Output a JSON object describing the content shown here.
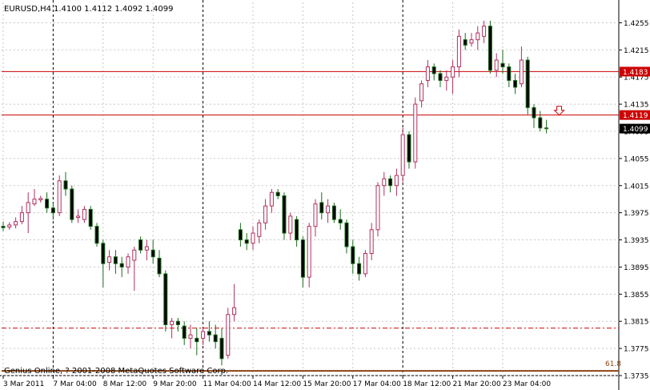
{
  "header": {
    "symbol_label": "EURUSD,H4",
    "ohlc_label": "1.4100 1.4112 1.4092 1.4099"
  },
  "footer": {
    "copyright": "Genius Online, ? 2001-2008 MetaQuotes Software Corp.",
    "fib_label": "61.8"
  },
  "chart_data": {
    "type": "candlestick",
    "symbol": "EURUSD",
    "timeframe": "H4",
    "ylim": [
      1.3735,
      1.4285
    ],
    "y_ticks": [
      "1.4255",
      "1.4215",
      "1.4175",
      "1.4135",
      "1.4095",
      "1.4055",
      "1.4015",
      "1.3975",
      "1.3935",
      "1.3895",
      "1.3855",
      "1.3815",
      "1.3775",
      "1.3735"
    ],
    "x_ticks": [
      "3 Mar 2011",
      "7 Mar 04:00",
      "8 Mar 12:00",
      "9 Mar 20:00",
      "11 Mar 04:00",
      "14 Mar 12:00",
      "15 Mar 20:00",
      "17 Mar 04:00",
      "18 Mar 12:00",
      "21 Mar 20:00",
      "23 Mar 04:00"
    ],
    "candles": [
      [
        1.3955,
        1.3962,
        1.3948,
        1.3953
      ],
      [
        1.3954,
        1.3961,
        1.395,
        1.3957
      ],
      [
        1.3957,
        1.3968,
        1.3952,
        1.3962
      ],
      [
        1.3962,
        1.3985,
        1.3958,
        1.3975
      ],
      [
        1.3975,
        1.4005,
        1.3945,
        1.399
      ],
      [
        1.3988,
        1.401,
        1.3985,
        1.3995
      ],
      [
        1.3994,
        1.4,
        1.399,
        1.3996
      ],
      [
        1.3995,
        1.4005,
        1.3975,
        1.3982
      ],
      [
        1.3982,
        1.399,
        1.3965,
        1.3975
      ],
      [
        1.3975,
        1.403,
        1.397,
        1.4022
      ],
      [
        1.4022,
        1.4035,
        1.4,
        1.401
      ],
      [
        1.401,
        1.4015,
        1.396,
        1.3965
      ],
      [
        1.3968,
        1.398,
        1.396,
        1.397
      ],
      [
        1.3965,
        1.3985,
        1.396,
        1.398
      ],
      [
        1.398,
        1.3985,
        1.395,
        1.3955
      ],
      [
        1.3955,
        1.396,
        1.3925,
        1.393
      ],
      [
        1.393,
        1.3935,
        1.3865,
        1.39
      ],
      [
        1.3902,
        1.392,
        1.389,
        1.391
      ],
      [
        1.391,
        1.392,
        1.3885,
        1.39
      ],
      [
        1.39,
        1.391,
        1.388,
        1.3895
      ],
      [
        1.3895,
        1.3915,
        1.3885,
        1.391
      ],
      [
        1.3905,
        1.3925,
        1.386,
        1.392
      ],
      [
        1.3935,
        1.394,
        1.3915,
        1.392
      ],
      [
        1.392,
        1.3935,
        1.3905,
        1.3925
      ],
      [
        1.392,
        1.3935,
        1.39,
        1.391
      ],
      [
        1.3908,
        1.392,
        1.388,
        1.3885
      ],
      [
        1.3885,
        1.389,
        1.38,
        1.381
      ],
      [
        1.381,
        1.382,
        1.379,
        1.3815
      ],
      [
        1.3815,
        1.382,
        1.38,
        1.381
      ],
      [
        1.3808,
        1.3815,
        1.378,
        1.379
      ],
      [
        1.379,
        1.381,
        1.3775,
        1.3795
      ],
      [
        1.379,
        1.3805,
        1.3765,
        1.3785
      ],
      [
        1.379,
        1.3805,
        1.378,
        1.38
      ],
      [
        1.38,
        1.3815,
        1.3785,
        1.3795
      ],
      [
        1.3795,
        1.381,
        1.3775,
        1.3785
      ],
      [
        1.379,
        1.3805,
        1.375,
        1.376
      ],
      [
        1.3765,
        1.3835,
        1.376,
        1.3825
      ],
      [
        1.3825,
        1.387,
        1.3815,
        1.3835
      ],
      [
        1.395,
        1.396,
        1.3925,
        1.3935
      ],
      [
        1.3935,
        1.3945,
        1.392,
        1.393
      ],
      [
        1.393,
        1.3955,
        1.392,
        1.3945
      ],
      [
        1.394,
        1.3965,
        1.393,
        1.396
      ],
      [
        1.396,
        1.3995,
        1.395,
        1.3985
      ],
      [
        1.3985,
        1.401,
        1.3975,
        1.4005
      ],
      [
        1.4005,
        1.401,
        1.3995,
        1.4
      ],
      [
        1.4,
        1.4005,
        1.3935,
        1.3945
      ],
      [
        1.3945,
        1.3975,
        1.3935,
        1.397
      ],
      [
        1.3965,
        1.397,
        1.3925,
        1.3935
      ],
      [
        1.3935,
        1.394,
        1.3865,
        1.388
      ],
      [
        1.388,
        1.396,
        1.3865,
        1.3955
      ],
      [
        1.3955,
        1.3995,
        1.394,
        1.3988
      ],
      [
        1.399,
        1.4005,
        1.3965,
        1.3975
      ],
      [
        1.3975,
        1.3995,
        1.396,
        1.3985
      ],
      [
        1.3985,
        1.399,
        1.396,
        1.3965
      ],
      [
        1.3965,
        1.398,
        1.395,
        1.396
      ],
      [
        1.396,
        1.3965,
        1.3915,
        1.3925
      ],
      [
        1.3925,
        1.3935,
        1.3885,
        1.39
      ],
      [
        1.39,
        1.391,
        1.3875,
        1.3885
      ],
      [
        1.3885,
        1.392,
        1.388,
        1.3915
      ],
      [
        1.3915,
        1.396,
        1.3905,
        1.395
      ],
      [
        1.395,
        1.402,
        1.394,
        1.4015
      ],
      [
        1.4015,
        1.4035,
        1.4,
        1.4025
      ],
      [
        1.4025,
        1.403,
        1.4005,
        1.4015
      ],
      [
        1.4015,
        1.404,
        1.4,
        1.403
      ],
      [
        1.403,
        1.41,
        1.402,
        1.409
      ],
      [
        1.409,
        1.4095,
        1.404,
        1.405
      ],
      [
        1.405,
        1.4145,
        1.404,
        1.4135
      ],
      [
        1.414,
        1.417,
        1.413,
        1.4165
      ],
      [
        1.417,
        1.42,
        1.416,
        1.419
      ],
      [
        1.419,
        1.4195,
        1.417,
        1.418
      ],
      [
        1.418,
        1.4185,
        1.416,
        1.417
      ],
      [
        1.417,
        1.4185,
        1.4155,
        1.4175
      ],
      [
        1.4175,
        1.42,
        1.415,
        1.419
      ],
      [
        1.419,
        1.4245,
        1.4175,
        1.4235
      ],
      [
        1.423,
        1.424,
        1.4215,
        1.4222
      ],
      [
        1.4225,
        1.424,
        1.422,
        1.423
      ],
      [
        1.423,
        1.425,
        1.4215,
        1.424
      ],
      [
        1.4235,
        1.4258,
        1.4225,
        1.425
      ],
      [
        1.425,
        1.4258,
        1.418,
        1.4185
      ],
      [
        1.4185,
        1.421,
        1.4175,
        1.42
      ],
      [
        1.4195,
        1.4215,
        1.418,
        1.419
      ],
      [
        1.419,
        1.4195,
        1.416,
        1.417
      ],
      [
        1.417,
        1.418,
        1.415,
        1.416
      ],
      [
        1.4165,
        1.422,
        1.416,
        1.42
      ],
      [
        1.42,
        1.4205,
        1.412,
        1.413
      ],
      [
        1.413,
        1.4135,
        1.41,
        1.4115
      ],
      [
        1.4115,
        1.4125,
        1.4095,
        1.41
      ],
      [
        1.41,
        1.4112,
        1.4092,
        1.4099
      ]
    ],
    "horizontal_lines": [
      {
        "price": 1.4183,
        "label": "1.4183",
        "color": "#cc0000",
        "style": "solid"
      },
      {
        "price": 1.4119,
        "label": "1.4119",
        "color": "#cc0000",
        "style": "solid"
      },
      {
        "price": 1.3805,
        "label": "",
        "color": "#cc0000",
        "style": "dashdot"
      },
      {
        "price": 1.3742,
        "label": "",
        "color": "#8b4513",
        "style": "solid"
      }
    ],
    "current_price": {
      "price": 1.4099,
      "label": "1.4099"
    },
    "vertical_dashed_line_ticks": [
      1,
      4,
      8
    ],
    "sell_arrow": {
      "candle_index": 87,
      "price": 1.4126,
      "color": "#cc0000"
    },
    "colors": {
      "bull_body": "#ffffff",
      "bull_outline": "#b03060",
      "bear_body": "#000000",
      "bear_outline": "#1a6b1a",
      "wick_bull": "#b03060",
      "wick_bear": "#1a6b1a",
      "grid": "#c8c8c8",
      "background": "#ffffff"
    },
    "grid": true
  }
}
